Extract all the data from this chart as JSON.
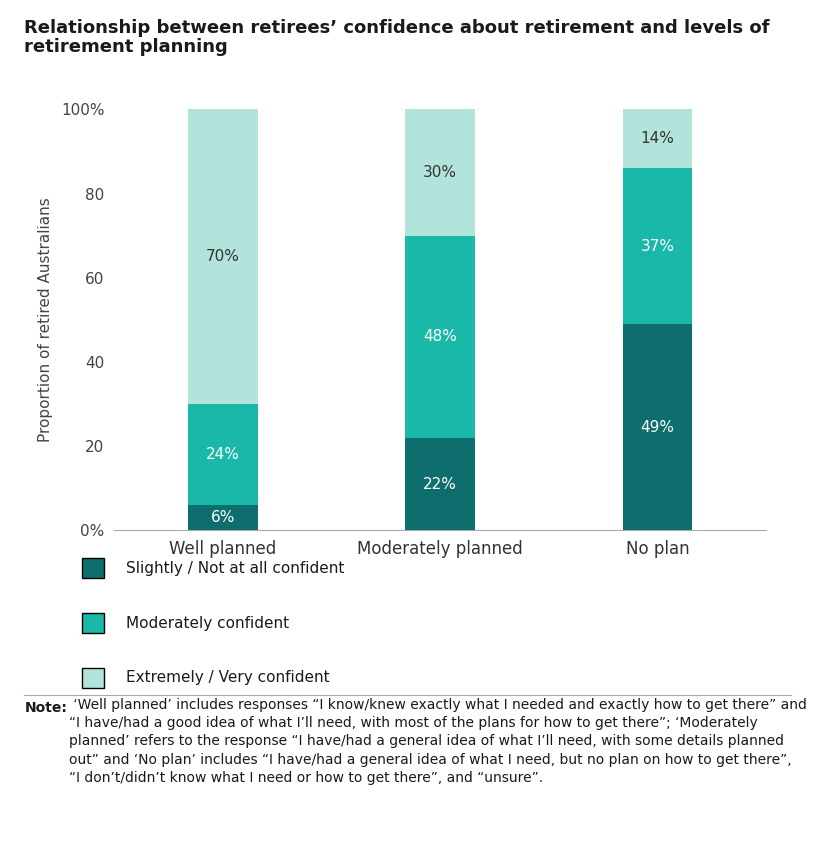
{
  "title_line1": "Relationship between retirees’ confidence about retirement and levels of",
  "title_line2": "retirement planning",
  "categories": [
    "Well planned",
    "Moderately planned",
    "No plan"
  ],
  "series": {
    "Slightly / Not at all confident": [
      6,
      22,
      49
    ],
    "Moderately confident": [
      24,
      48,
      37
    ],
    "Extremely / Very confident": [
      70,
      30,
      14
    ]
  },
  "colors": {
    "Slightly / Not at all confident": "#0e6e6e",
    "Moderately confident": "#1ab8a8",
    "Extremely / Very confident": "#b2e4dc"
  },
  "ylabel": "Proportion of retired Australians",
  "ylim": [
    0,
    100
  ],
  "yticks": [
    0,
    20,
    40,
    60,
    80,
    100
  ],
  "ytick_labels": [
    "0%",
    "20",
    "40",
    "60",
    "80",
    "100%"
  ],
  "bar_width": 0.32,
  "note_bold": "Note:",
  "note_text": " ‘Well planned’ includes responses “I know/knew exactly what I needed and exactly how to get there” and “I have/had a good idea of what I’ll need, with most of the plans for how to get there”; ‘Moderately planned’ refers to the response “I have/had a general idea of what I’ll need, with some details planned out” and ‘No plan’ includes “I have/had a general idea of what I need, but no plan on how to get there”, “I don’t/didn’t know what I need or how to get there”, and “unsure”.",
  "bg_color": "#ffffff",
  "layer_order": [
    "Slightly / Not at all confident",
    "Moderately confident",
    "Extremely / Very confident"
  ],
  "text_colors": {
    "Slightly / Not at all confident": "white",
    "Moderately confident": "white",
    "Extremely / Very confident": "#333333"
  }
}
